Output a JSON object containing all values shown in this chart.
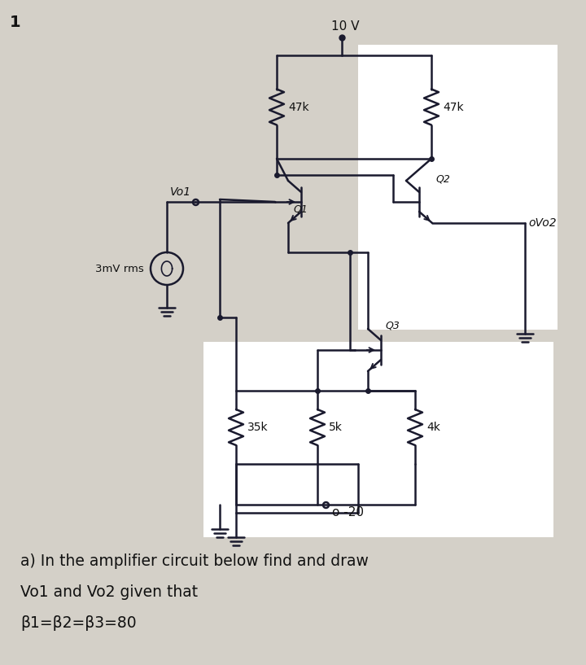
{
  "bg_color": "#d4d0c8",
  "line_color": "#1a1a2e",
  "text_color": "#111111",
  "page_number": "1",
  "supply_label": "10 V",
  "r1_label": "47k",
  "r2_label": "47k",
  "r35k_label": "35k",
  "r5k_label": "5k",
  "r4k_label": "4k",
  "q1_label": "Q1",
  "q2_label": "Q2",
  "q3_label": "Q3",
  "vi_label": "Vo1",
  "vi_source": "3mV rms",
  "vo2_label": "oVo2",
  "neg_supply": "o -20",
  "bottom_text_line1": "a) In the amplifier circuit below find and draw",
  "bottom_text_line2": "Vo1 and Vo2 given that",
  "bottom_text_line3": "β1=β2=β3=80",
  "fig_width": 7.2,
  "fig_height": 8.17,
  "dpi": 100
}
